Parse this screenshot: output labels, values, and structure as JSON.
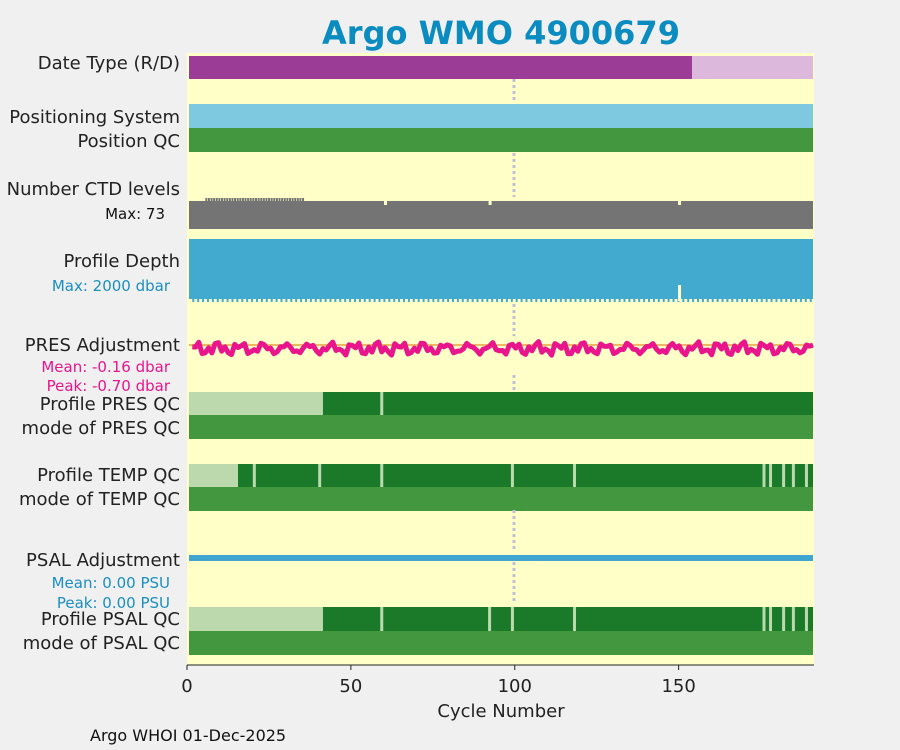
{
  "title": "Argo WMO 4900679",
  "footer": "Argo WHOI 01-Dec-2025",
  "colors": {
    "title": "#0a8cc0",
    "plot_bg": "#ffffc8",
    "page_bg": "#f0f0f0",
    "date_real": "#9b3d96",
    "date_delayed": "#dcb8dc",
    "positioning": "#7ec8e0",
    "qc_mid": "#43983f",
    "qc_dark": "#1a7a2a",
    "qc_light": "#bcd9ad",
    "ctd": "#747474",
    "depth": "#42aacf",
    "pres": "#e8158c",
    "psal": "#3fa4cf",
    "midline": "#c0c0d8"
  },
  "chart_data": {
    "type": "table",
    "xlabel": "Cycle Number",
    "xlim": [
      0,
      191
    ],
    "xticks": [
      0,
      50,
      100,
      150
    ],
    "total_cycles": 191,
    "row_labels": {
      "date_type": "Date Type (R/D)",
      "positioning_system": "Positioning System",
      "position_qc": "Position QC",
      "number_ctd": "Number CTD levels",
      "profile_depth": "Profile Depth",
      "pres_adjustment": "PRES Adjustment",
      "profile_pres_qc": "Profile PRES QC",
      "mode_pres_qc": "mode of PRES QC",
      "profile_temp_qc": "Profile TEMP QC",
      "mode_temp_qc": "mode of TEMP QC",
      "psal_adjustment": "PSAL Adjustment",
      "profile_psal_qc": "Profile PSAL QC",
      "mode_psal_qc": "mode of PSAL QC"
    },
    "annotations": {
      "ctd_max": "Max: 73",
      "depth_max": "Max: 2000 dbar",
      "pres_mean": "Mean: -0.16 dbar",
      "pres_peak": "Peak: -0.70 dbar",
      "psal_mean": "Mean: 0.00 PSU",
      "psal_peak": "Peak: 0.00 PSU"
    },
    "date_type_delayed_from_cycle": 154,
    "pres_adjustment_mean_dbar": -0.16,
    "pres_adjustment_peak_dbar": -0.7,
    "psal_adjustment_mean_psu": 0.0,
    "psal_adjustment_peak_psu": 0.0,
    "depth_short_cycle": 150,
    "ctd_short_cycles": [
      60,
      92,
      150
    ],
    "pres_qc_light_until": 41,
    "pres_qc_gaps": [
      59
    ],
    "temp_qc_light_until": 15,
    "temp_qc_gaps": [
      20,
      40,
      59,
      99,
      118,
      176,
      178,
      182,
      185,
      189
    ],
    "psal_qc_light_until": 41,
    "psal_qc_gaps": [
      59,
      92,
      99,
      118,
      176,
      178,
      182,
      185,
      189
    ]
  }
}
